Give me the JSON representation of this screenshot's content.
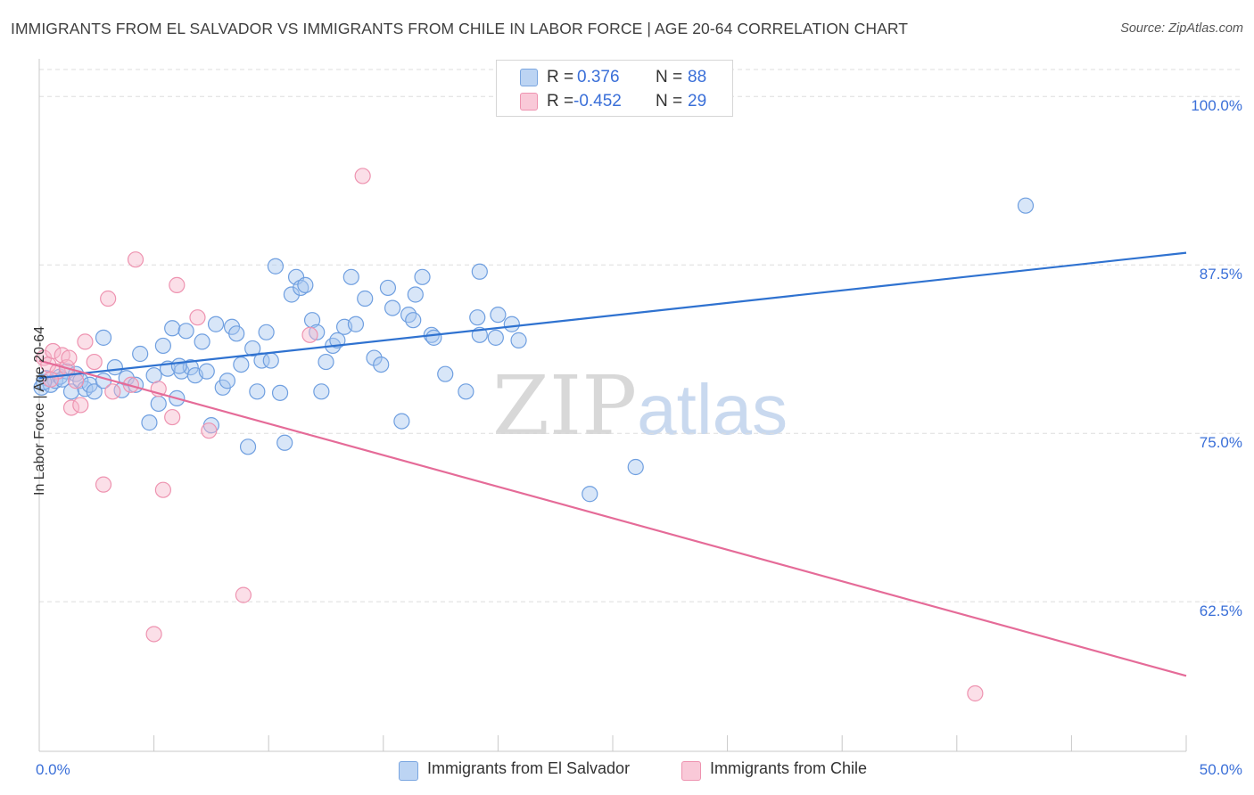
{
  "header": {
    "title": "IMMIGRANTS FROM EL SALVADOR VS IMMIGRANTS FROM CHILE IN LABOR FORCE | AGE 20-64 CORRELATION CHART",
    "source": "Source: ZipAtlas.com"
  },
  "watermark": {
    "zip": "ZIP",
    "atlas": "atlas"
  },
  "legend": {
    "series1": {
      "r_label": "R =",
      "r_value": "0.376",
      "n_label": "N =",
      "n_value": "88"
    },
    "series2": {
      "r_label": "R =",
      "r_value": "-0.452",
      "n_label": "N =",
      "n_value": "29"
    }
  },
  "bottom_legend": {
    "series1": "Immigrants from El Salvador",
    "series2": "Immigrants from Chile"
  },
  "colors": {
    "blue_fill": "#a8c8f0",
    "blue_stroke": "#6f9fe0",
    "blue_line": "#2f72d0",
    "pink_fill": "#f7b8cb",
    "pink_stroke": "#ee93b0",
    "pink_line": "#e56b98",
    "tick_label": "#3a6fd8",
    "grid": "#dedede"
  },
  "chart_data": {
    "type": "scatter",
    "title": "IMMIGRANTS FROM EL SALVADOR VS IMMIGRANTS FROM CHILE IN LABOR FORCE | AGE 20-64 CORRELATION CHART",
    "xlabel": "",
    "ylabel": "In Labor Force | Age 20-64",
    "xlim": [
      0,
      50
    ],
    "ylim": [
      51.4,
      102
    ],
    "x_tick_labels": [
      "0.0%",
      "50.0%"
    ],
    "y_ticks": [
      62.5,
      75.0,
      87.5,
      100.0
    ],
    "y_tick_labels": [
      "62.5%",
      "75.0%",
      "87.5%",
      "100.0%"
    ],
    "grid": true,
    "legend_position": "top-center",
    "series": [
      {
        "name": "Immigrants from El Salvador",
        "color": "blue",
        "trend": {
          "x": [
            0,
            50
          ],
          "y": [
            79.1,
            88.4
          ]
        },
        "points": [
          [
            0.1,
            78.4
          ],
          [
            0.3,
            79.1
          ],
          [
            0.5,
            78.6
          ],
          [
            0.7,
            78.9
          ],
          [
            0.9,
            79.2
          ],
          [
            1.2,
            79.6
          ],
          [
            1.4,
            78.1
          ],
          [
            1.6,
            79.4
          ],
          [
            1.8,
            78.9
          ],
          [
            2.0,
            78.3
          ],
          [
            2.2,
            78.6
          ],
          [
            2.4,
            78.1
          ],
          [
            2.8,
            78.9
          ],
          [
            2.8,
            82.1
          ],
          [
            3.3,
            79.9
          ],
          [
            3.8,
            79.1
          ],
          [
            4.2,
            78.6
          ],
          [
            4.4,
            80.9
          ],
          [
            4.8,
            75.8
          ],
          [
            5.0,
            79.3
          ],
          [
            5.2,
            77.2
          ],
          [
            5.4,
            81.5
          ],
          [
            5.6,
            79.8
          ],
          [
            5.8,
            82.8
          ],
          [
            6.0,
            77.6
          ],
          [
            6.2,
            79.6
          ],
          [
            6.4,
            82.6
          ],
          [
            6.6,
            79.9
          ],
          [
            6.8,
            79.3
          ],
          [
            7.1,
            81.8
          ],
          [
            7.3,
            79.6
          ],
          [
            7.5,
            75.6
          ],
          [
            7.7,
            83.1
          ],
          [
            8.0,
            78.4
          ],
          [
            8.2,
            78.9
          ],
          [
            8.4,
            82.9
          ],
          [
            8.6,
            82.4
          ],
          [
            8.8,
            80.1
          ],
          [
            9.1,
            74.0
          ],
          [
            9.3,
            81.3
          ],
          [
            9.5,
            78.1
          ],
          [
            9.7,
            80.4
          ],
          [
            9.9,
            82.5
          ],
          [
            10.1,
            80.4
          ],
          [
            10.3,
            87.4
          ],
          [
            10.5,
            78.0
          ],
          [
            10.7,
            74.3
          ],
          [
            11.0,
            85.3
          ],
          [
            11.2,
            86.6
          ],
          [
            11.4,
            85.8
          ],
          [
            11.6,
            86.0
          ],
          [
            11.9,
            83.4
          ],
          [
            12.1,
            82.5
          ],
          [
            12.3,
            78.1
          ],
          [
            12.5,
            80.3
          ],
          [
            12.8,
            81.5
          ],
          [
            13.0,
            81.9
          ],
          [
            13.3,
            82.9
          ],
          [
            13.6,
            86.6
          ],
          [
            13.8,
            83.1
          ],
          [
            14.2,
            85.0
          ],
          [
            14.6,
            80.6
          ],
          [
            14.9,
            80.1
          ],
          [
            15.2,
            85.8
          ],
          [
            15.4,
            84.3
          ],
          [
            15.8,
            75.9
          ],
          [
            16.1,
            83.8
          ],
          [
            16.3,
            83.4
          ],
          [
            16.4,
            85.3
          ],
          [
            16.7,
            86.6
          ],
          [
            17.1,
            82.3
          ],
          [
            17.2,
            82.1
          ],
          [
            17.7,
            79.4
          ],
          [
            18.6,
            78.1
          ],
          [
            19.1,
            83.6
          ],
          [
            19.2,
            82.3
          ],
          [
            19.2,
            87.0
          ],
          [
            19.9,
            82.1
          ],
          [
            20.0,
            83.8
          ],
          [
            20.6,
            83.1
          ],
          [
            20.9,
            81.9
          ],
          [
            24.0,
            70.5
          ],
          [
            26.0,
            72.5
          ],
          [
            43.0,
            91.9
          ],
          [
            0.2,
            78.8
          ],
          [
            1.0,
            79.0
          ],
          [
            3.6,
            78.2
          ],
          [
            6.1,
            80.0
          ]
        ]
      },
      {
        "name": "Immigrants from Chile",
        "color": "pink",
        "trend": {
          "x": [
            0,
            50
          ],
          "y": [
            80.4,
            57.0
          ]
        },
        "points": [
          [
            0.2,
            80.6
          ],
          [
            0.4,
            80.1
          ],
          [
            0.6,
            81.1
          ],
          [
            0.8,
            79.6
          ],
          [
            1.0,
            80.8
          ],
          [
            1.2,
            79.9
          ],
          [
            1.4,
            76.9
          ],
          [
            1.6,
            78.9
          ],
          [
            1.8,
            77.1
          ],
          [
            2.0,
            81.8
          ],
          [
            2.4,
            80.3
          ],
          [
            2.8,
            71.2
          ],
          [
            3.0,
            85.0
          ],
          [
            3.2,
            78.1
          ],
          [
            4.0,
            78.6
          ],
          [
            4.2,
            87.9
          ],
          [
            5.0,
            60.1
          ],
          [
            5.2,
            78.3
          ],
          [
            5.4,
            70.8
          ],
          [
            5.8,
            76.2
          ],
          [
            6.0,
            86.0
          ],
          [
            6.9,
            83.6
          ],
          [
            7.4,
            75.2
          ],
          [
            8.9,
            63.0
          ],
          [
            11.8,
            82.3
          ],
          [
            14.1,
            94.1
          ],
          [
            40.8,
            55.7
          ],
          [
            0.5,
            79.0
          ],
          [
            1.3,
            80.6
          ]
        ]
      }
    ]
  }
}
